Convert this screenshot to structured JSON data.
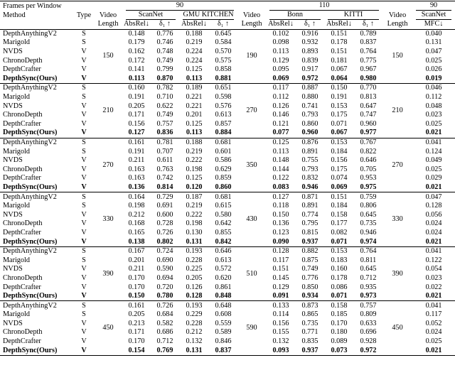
{
  "header": {
    "frames": "Frames per Window",
    "method": "Method",
    "type": "Type",
    "sections": [
      {
        "window": "90",
        "length_label": [
          "Video",
          "Length"
        ],
        "datasets": [
          {
            "name": "ScanNet",
            "metrics": [
              "AbsRel↓",
              "δ₁ ↑"
            ]
          },
          {
            "name": "GMU KITCHEN",
            "metrics": [
              "AbsRel↓",
              "δ₁ ↑"
            ]
          }
        ]
      },
      {
        "window": "110",
        "length_label": [
          "Video",
          "Length"
        ],
        "datasets": [
          {
            "name": "Bonn",
            "metrics": [
              "AbsRel↓",
              "δ₁ ↑"
            ]
          },
          {
            "name": "KITTI",
            "metrics": [
              "AbsRel↓",
              "δ₁ ↑"
            ]
          }
        ]
      },
      {
        "window": "90",
        "length_label": [
          "Video",
          "Length"
        ],
        "datasets": [
          {
            "name": "ScanNet",
            "metrics": [
              "MFC↓"
            ]
          }
        ]
      }
    ]
  },
  "groups": [
    {
      "lengths": [
        "150",
        "190",
        "150"
      ],
      "rows": [
        {
          "method": "DepthAnythingV2",
          "type": "S",
          "values": [
            "0.148",
            "0.776",
            "0.188",
            "0.645",
            "0.102",
            "0.916",
            "0.151",
            "0.789",
            "0.040"
          ]
        },
        {
          "method": "Marigold",
          "type": "S",
          "values": [
            "0.179",
            "0.746",
            "0.219",
            "0.584",
            "0.098",
            "0.932",
            "0.178",
            "0.837",
            "0.131"
          ]
        },
        {
          "method": "NVDS",
          "type": "V",
          "values": [
            "0.162",
            "0.748",
            "0.224",
            "0.570",
            "0.113",
            "0.893",
            "0.151",
            "0.764",
            "0.047"
          ]
        },
        {
          "method": "ChronoDepth",
          "type": "V",
          "values": [
            "0.172",
            "0.749",
            "0.224",
            "0.575",
            "0.129",
            "0.839",
            "0.181",
            "0.775",
            "0.025"
          ]
        },
        {
          "method": "DepthCrafter",
          "type": "V",
          "values": [
            "0.141",
            "0.799",
            "0.125",
            "0.858",
            "0.095",
            "0.917",
            "0.067",
            "0.967",
            "0.026"
          ]
        },
        {
          "method": "DepthSync(Ours)",
          "type": "V",
          "values": [
            "0.113",
            "0.870",
            "0.113",
            "0.881",
            "0.069",
            "0.972",
            "0.064",
            "0.980",
            "0.019"
          ]
        }
      ]
    },
    {
      "lengths": [
        "210",
        "270",
        "210"
      ],
      "rows": [
        {
          "method": "DepthAnythingV2",
          "type": "S",
          "values": [
            "0.160",
            "0.782",
            "0.189",
            "0.651",
            "0.117",
            "0.887",
            "0.150",
            "0.770",
            "0.046"
          ]
        },
        {
          "method": "Marigold",
          "type": "S",
          "values": [
            "0.191",
            "0.710",
            "0.221",
            "0.598",
            "0.112",
            "0.880",
            "0.191",
            "0.813",
            "0.112"
          ]
        },
        {
          "method": "NVDS",
          "type": "V",
          "values": [
            "0.205",
            "0.622",
            "0.221",
            "0.576",
            "0.126",
            "0.741",
            "0.153",
            "0.647",
            "0.048"
          ]
        },
        {
          "method": "ChronoDepth",
          "type": "V",
          "values": [
            "0.171",
            "0.749",
            "0.201",
            "0.613",
            "0.146",
            "0.793",
            "0.175",
            "0.747",
            "0.023"
          ]
        },
        {
          "method": "DepthCrafter",
          "type": "V",
          "values": [
            "0.156",
            "0.757",
            "0.125",
            "0.857",
            "0.121",
            "0.860",
            "0.071",
            "0.960",
            "0.025"
          ]
        },
        {
          "method": "DepthSync(Ours)",
          "type": "V",
          "values": [
            "0.127",
            "0.836",
            "0.113",
            "0.884",
            "0.077",
            "0.960",
            "0.067",
            "0.977",
            "0.021"
          ]
        }
      ]
    },
    {
      "lengths": [
        "270",
        "350",
        "270"
      ],
      "rows": [
        {
          "method": "DepthAnythingV2",
          "type": "S",
          "values": [
            "0.161",
            "0.781",
            "0.188",
            "0.681",
            "0.125",
            "0.876",
            "0.153",
            "0.767",
            "0.041"
          ]
        },
        {
          "method": "Marigold",
          "type": "S",
          "values": [
            "0.191",
            "0.707",
            "0.219",
            "0.601",
            "0.113",
            "0.891",
            "0.184",
            "0.822",
            "0.124"
          ]
        },
        {
          "method": "NVDS",
          "type": "V",
          "values": [
            "0.211",
            "0.611",
            "0.222",
            "0.586",
            "0.148",
            "0.755",
            "0.156",
            "0.646",
            "0.049"
          ]
        },
        {
          "method": "ChronoDepth",
          "type": "V",
          "values": [
            "0.163",
            "0.763",
            "0.198",
            "0.629",
            "0.144",
            "0.793",
            "0.175",
            "0.705",
            "0.025"
          ]
        },
        {
          "method": "DepthCrafter",
          "type": "V",
          "values": [
            "0.163",
            "0.742",
            "0.125",
            "0.859",
            "0.122",
            "0.832",
            "0.074",
            "0.953",
            "0.029"
          ]
        },
        {
          "method": "DepthSync(Ours)",
          "type": "V",
          "values": [
            "0.136",
            "0.814",
            "0.120",
            "0.860",
            "0.083",
            "0.946",
            "0.069",
            "0.975",
            "0.021"
          ]
        }
      ]
    },
    {
      "lengths": [
        "330",
        "430",
        "330"
      ],
      "rows": [
        {
          "method": "DepthAnythingV2",
          "type": "S",
          "values": [
            "0.164",
            "0.729",
            "0.187",
            "0.681",
            "0.127",
            "0.871",
            "0.151",
            "0.759",
            "0.047"
          ]
        },
        {
          "method": "Marigold",
          "type": "S",
          "values": [
            "0.198",
            "0.691",
            "0.219",
            "0.615",
            "0.118",
            "0.891",
            "0.184",
            "0.806",
            "0.128"
          ]
        },
        {
          "method": "NVDS",
          "type": "V",
          "values": [
            "0.212",
            "0.600",
            "0.222",
            "0.580",
            "0.150",
            "0.774",
            "0.158",
            "0.645",
            "0.056"
          ]
        },
        {
          "method": "ChronoDepth",
          "type": "V",
          "values": [
            "0.168",
            "0.728",
            "0.198",
            "0.642",
            "0.136",
            "0.795",
            "0.177",
            "0.735",
            "0.024"
          ]
        },
        {
          "method": "DepthCrafter",
          "type": "V",
          "values": [
            "0.165",
            "0.726",
            "0.130",
            "0.855",
            "0.123",
            "0.815",
            "0.082",
            "0.946",
            "0.024"
          ]
        },
        {
          "method": "DepthSync(Ours)",
          "type": "V",
          "values": [
            "0.138",
            "0.802",
            "0.131",
            "0.842",
            "0.090",
            "0.937",
            "0.071",
            "0.974",
            "0.021"
          ]
        }
      ]
    },
    {
      "lengths": [
        "390",
        "510",
        "390"
      ],
      "rows": [
        {
          "method": "DepthAnythingV2",
          "type": "S",
          "values": [
            "0.167",
            "0.724",
            "0.193",
            "0.646",
            "0.128",
            "0.882",
            "0.153",
            "0.764",
            "0.041"
          ]
        },
        {
          "method": "Marigold",
          "type": "S",
          "values": [
            "0.201",
            "0.690",
            "0.228",
            "0.613",
            "0.117",
            "0.875",
            "0.183",
            "0.811",
            "0.122"
          ]
        },
        {
          "method": "NVDS",
          "type": "V",
          "values": [
            "0.211",
            "0.590",
            "0.225",
            "0.572",
            "0.151",
            "0.749",
            "0.160",
            "0.645",
            "0.054"
          ]
        },
        {
          "method": "ChronoDepth",
          "type": "V",
          "values": [
            "0.170",
            "0.694",
            "0.205",
            "0.620",
            "0.145",
            "0.776",
            "0.178",
            "0.712",
            "0.023"
          ]
        },
        {
          "method": "DepthCrafter",
          "type": "V",
          "values": [
            "0.170",
            "0.720",
            "0.126",
            "0.861",
            "0.129",
            "0.850",
            "0.086",
            "0.935",
            "0.022"
          ]
        },
        {
          "method": "DepthSync(Ours)",
          "type": "V",
          "values": [
            "0.150",
            "0.780",
            "0.128",
            "0.848",
            "0.091",
            "0.934",
            "0.071",
            "0.973",
            "0.021"
          ]
        }
      ]
    },
    {
      "lengths": [
        "450",
        "590",
        "450"
      ],
      "rows": [
        {
          "method": "DepthAnythingV2",
          "type": "S",
          "values": [
            "0.161",
            "0.726",
            "0.193",
            "0.648",
            "0.133",
            "0.873",
            "0.158",
            "0.757",
            "0.041"
          ]
        },
        {
          "method": "Marigold",
          "type": "S",
          "values": [
            "0.205",
            "0.684",
            "0.229",
            "0.608",
            "0.114",
            "0.865",
            "0.185",
            "0.809",
            "0.117"
          ]
        },
        {
          "method": "NVDS",
          "type": "V",
          "values": [
            "0.213",
            "0.582",
            "0.228",
            "0.559",
            "0.156",
            "0.735",
            "0.170",
            "0.633",
            "0.052"
          ]
        },
        {
          "method": "ChronoDepth",
          "type": "V",
          "values": [
            "0.171",
            "0.686",
            "0.212",
            "0.589",
            "0.155",
            "0.771",
            "0.180",
            "0.696",
            "0.024"
          ]
        },
        {
          "method": "DepthCrafter",
          "type": "V",
          "values": [
            "0.170",
            "0.712",
            "0.132",
            "0.846",
            "0.132",
            "0.835",
            "0.089",
            "0.928",
            "0.025"
          ]
        },
        {
          "method": "DepthSync(Ours)",
          "type": "V",
          "values": [
            "0.154",
            "0.769",
            "0.131",
            "0.837",
            "0.093",
            "0.937",
            "0.073",
            "0.972",
            "0.021"
          ]
        }
      ]
    }
  ]
}
